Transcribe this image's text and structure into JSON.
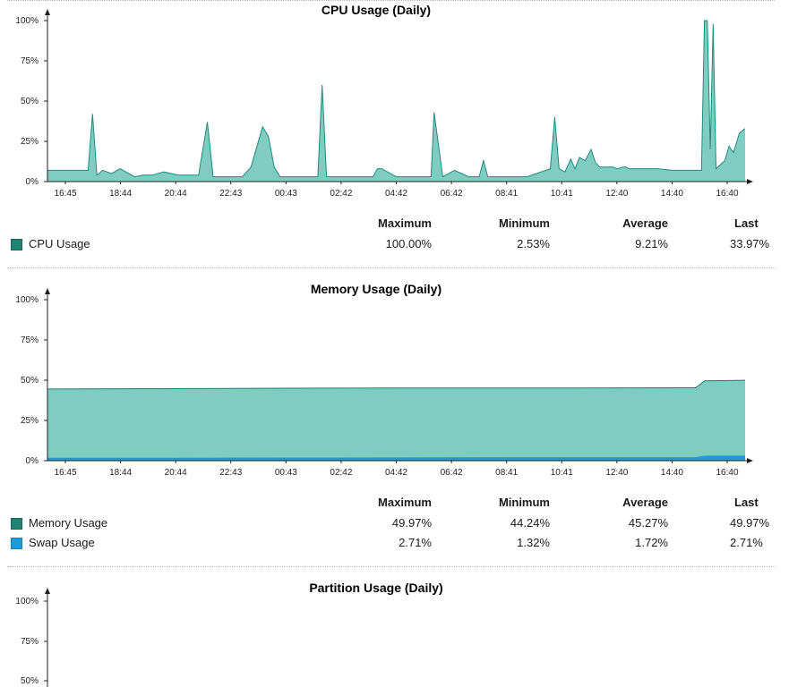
{
  "colors": {
    "cpu": "#7ecdc0",
    "cpu_line": "#1f8a7e",
    "memory": "#7ecdc0",
    "memory_line": "#1f7a72",
    "swap": "#1e9ad6",
    "axis": "#222222"
  },
  "stats_headers": [
    "Maximum",
    "Minimum",
    "Average",
    "Last"
  ],
  "chart_data": [
    {
      "type": "area",
      "title": "CPU Usage (Daily)",
      "ylim": [
        0,
        100
      ],
      "yticks": [
        "0%",
        "25%",
        "50%",
        "75%",
        "100%"
      ],
      "xticks": [
        "16:45",
        "18:44",
        "20:44",
        "22:43",
        "00:43",
        "02:42",
        "04:42",
        "06:42",
        "08:41",
        "10:41",
        "12:40",
        "14:40",
        "16:40"
      ],
      "x_hours": [
        0,
        0.3,
        0.8,
        1.4,
        1.55,
        1.7,
        1.9,
        2.2,
        2.5,
        3.0,
        3.3,
        3.6,
        4.0,
        4.5,
        5.2,
        5.5,
        5.7,
        5.85,
        6.0,
        6.3,
        6.7,
        7.0,
        7.4,
        7.6,
        7.8,
        8.0,
        8.1,
        8.2,
        8.5,
        9.3,
        9.45,
        9.6,
        9.9,
        10.6,
        10.8,
        11.2,
        11.35,
        11.5,
        12.0,
        12.6,
        13.05,
        13.2,
        13.3,
        13.6,
        14.0,
        14.5,
        14.85,
        15.0,
        15.15,
        15.4,
        15.9,
        16.5,
        17.3,
        17.45,
        17.6,
        17.8,
        18.0,
        18.15,
        18.3,
        18.5,
        18.7,
        18.85,
        19.0,
        19.3,
        19.45,
        19.6,
        19.8,
        19.9,
        20.0,
        20.3,
        20.5,
        21.0,
        21.5,
        22.0,
        22.5,
        22.6,
        22.7,
        22.8,
        22.9,
        23.0,
        23.3,
        23.45,
        23.6,
        23.8,
        24.0
      ],
      "series": [
        {
          "name": "CPU Usage",
          "values": [
            7,
            7,
            7,
            7,
            42,
            4,
            7,
            5,
            8,
            3,
            4,
            4,
            6,
            4,
            4,
            37,
            3,
            3,
            3,
            3,
            3,
            9,
            34,
            28,
            9,
            3,
            3,
            3,
            3,
            3,
            60,
            3,
            3,
            3,
            3,
            3,
            8,
            8,
            3,
            3,
            3,
            3,
            43,
            3,
            7,
            3,
            3,
            13,
            3,
            3,
            3,
            3,
            8,
            40,
            8,
            6,
            14,
            8,
            15,
            13,
            20,
            12,
            9,
            9,
            9,
            8,
            9,
            9,
            8,
            8,
            8,
            8,
            7,
            7,
            7,
            100,
            100,
            20,
            98,
            8,
            13,
            22,
            18,
            30,
            33
          ]
        }
      ],
      "stats": [
        {
          "label": "CPU Usage",
          "color": "#1e8275",
          "maximum": "100.00%",
          "minimum": "2.53%",
          "average": "9.21%",
          "last": "33.97%"
        }
      ]
    },
    {
      "type": "area",
      "title": "Memory Usage (Daily)",
      "ylim": [
        0,
        100
      ],
      "yticks": [
        "0%",
        "25%",
        "50%",
        "75%",
        "100%"
      ],
      "xticks": [
        "16:45",
        "18:44",
        "20:44",
        "22:43",
        "00:43",
        "02:42",
        "04:42",
        "06:42",
        "08:41",
        "10:41",
        "12:40",
        "14:40",
        "16:40"
      ],
      "x_hours": [
        0,
        4.0,
        8.0,
        12.0,
        16.0,
        20.0,
        22.3,
        22.6,
        24.0
      ],
      "series": [
        {
          "name": "Memory Usage",
          "values": [
            44.5,
            44.7,
            45.0,
            45.1,
            45.1,
            45.2,
            45.3,
            49.6,
            49.97
          ]
        },
        {
          "name": "Swap Usage",
          "values": [
            1.4,
            1.4,
            1.5,
            1.6,
            1.7,
            1.7,
            1.8,
            2.7,
            2.71
          ]
        }
      ],
      "stats": [
        {
          "label": "Memory Usage",
          "color": "#1e8275",
          "maximum": "49.97%",
          "minimum": "44.24%",
          "average": "45.27%",
          "last": "49.97%"
        },
        {
          "label": "Swap Usage",
          "color": "#1e9ad6",
          "maximum": "2.71%",
          "minimum": "1.32%",
          "average": "1.72%",
          "last": "2.71%"
        }
      ]
    },
    {
      "type": "area",
      "title": "Partition Usage (Daily)",
      "ylim": [
        0,
        100
      ],
      "yticks_visible": [
        "50%",
        "75%",
        "100%"
      ],
      "series": []
    }
  ]
}
